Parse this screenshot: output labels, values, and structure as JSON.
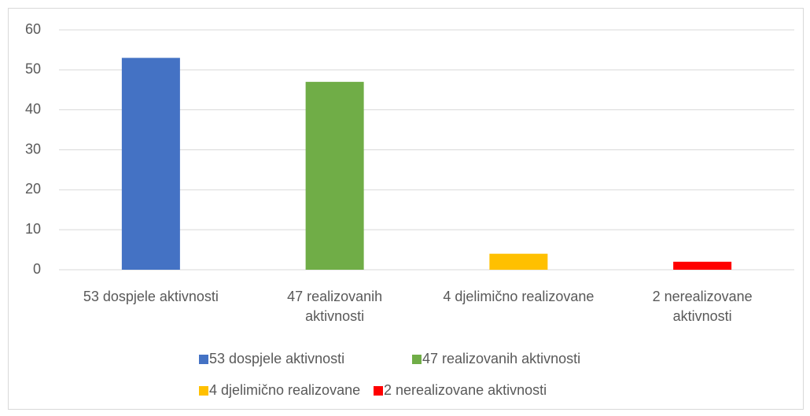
{
  "chart_data": {
    "type": "bar",
    "categories": [
      "53 dospjele aktivnosti",
      "47 realizovanih aktivnosti",
      "4 djelimično realizovane",
      "2 nerealizovane aktivnosti"
    ],
    "values": [
      53,
      47,
      4,
      2
    ],
    "colors": [
      "#4472c4",
      "#70ad47",
      "#ffc000",
      "#ff0000"
    ],
    "ylim": [
      0,
      60
    ],
    "yticks": [
      0,
      10,
      20,
      30,
      40,
      50,
      60
    ],
    "grid": true,
    "legend": "bottom"
  }
}
